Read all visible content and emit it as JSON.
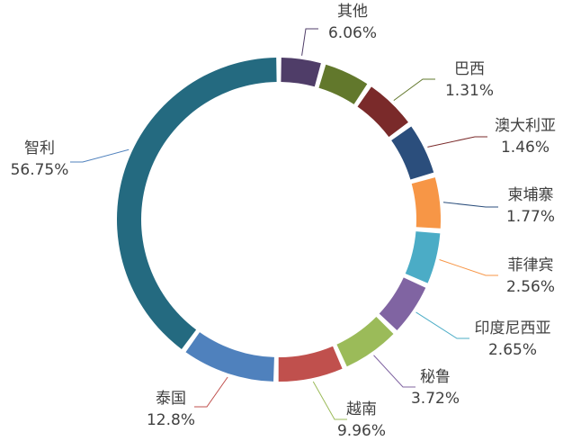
{
  "chart_data": {
    "type": "pie",
    "style": "donut",
    "title": "",
    "unit": "%",
    "slices": [
      {
        "name": "其他",
        "value": 6.06,
        "label": "6.06%",
        "color": "#4f3d68"
      },
      {
        "name": "巴西",
        "value": 1.31,
        "label": "1.31%",
        "color": "#62782c"
      },
      {
        "name": "澳大利亚",
        "value": 1.46,
        "label": "1.46%",
        "color": "#7a2a2a"
      },
      {
        "name": "柬埔寨",
        "value": 1.77,
        "label": "1.77%",
        "color": "#2b4e7c"
      },
      {
        "name": "菲律宾",
        "value": 2.56,
        "label": "2.56%",
        "color": "#f79646"
      },
      {
        "name": "印度尼西亚",
        "value": 2.65,
        "label": "2.65%",
        "color": "#4bacc6"
      },
      {
        "name": "秘鲁",
        "value": 3.72,
        "label": "3.72%",
        "color": "#8064a2"
      },
      {
        "name": "越南",
        "value": 9.96,
        "label": "9.96%",
        "color": "#9bbb59"
      },
      {
        "name": "泰国",
        "value": 12.8,
        "label": "12.8%",
        "color": "#c0504d"
      },
      {
        "name": "智利",
        "value": 56.75,
        "label": "56.75%",
        "color": "#4f81bd"
      }
    ],
    "legend": "none"
  }
}
